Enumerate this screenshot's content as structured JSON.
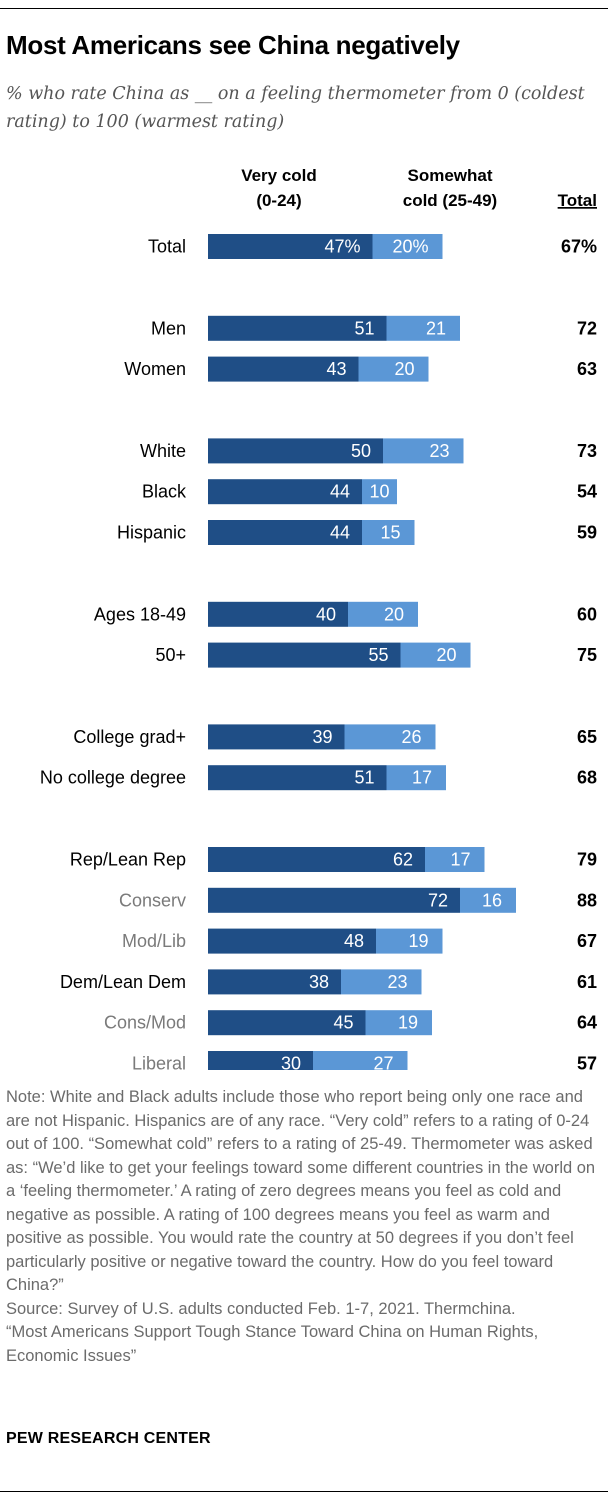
{
  "header": {
    "title": "Most Americans see China negatively",
    "subtitle": "% who rate China as __ on a feeling thermometer from 0 (coldest rating) to 100 (warmest rating)"
  },
  "chart_data": {
    "type": "bar",
    "orientation": "horizontal",
    "stacked": true,
    "title": "Most Americans see China negatively",
    "legend": {
      "very_cold": [
        "Very cold",
        "(0-24)"
      ],
      "somewhat_cold": [
        "Somewhat",
        "cold (25-49)"
      ],
      "total": "Total"
    },
    "colors": {
      "very_cold": "#1f4e86",
      "somewhat_cold": "#5b97d6",
      "label_gray": "#7a7a7a"
    },
    "x_range": [
      0,
      100
    ],
    "rows": [
      {
        "label": "Total",
        "very_cold": 47,
        "somewhat_cold": 20,
        "total": 67,
        "very_cold_label": "47%",
        "somewhat_cold_label": "20%",
        "total_label": "67%",
        "group": 0,
        "sub": false
      },
      {
        "label": "Men",
        "very_cold": 51,
        "somewhat_cold": 21,
        "total": 72,
        "very_cold_label": "51",
        "somewhat_cold_label": "21",
        "total_label": "72",
        "group": 1,
        "sub": false
      },
      {
        "label": "Women",
        "very_cold": 43,
        "somewhat_cold": 20,
        "total": 63,
        "very_cold_label": "43",
        "somewhat_cold_label": "20",
        "total_label": "63",
        "group": 1,
        "sub": false
      },
      {
        "label": "White",
        "very_cold": 50,
        "somewhat_cold": 23,
        "total": 73,
        "very_cold_label": "50",
        "somewhat_cold_label": "23",
        "total_label": "73",
        "group": 2,
        "sub": false
      },
      {
        "label": "Black",
        "very_cold": 44,
        "somewhat_cold": 10,
        "total": 54,
        "very_cold_label": "44",
        "somewhat_cold_label": "10",
        "total_label": "54",
        "group": 2,
        "sub": false
      },
      {
        "label": "Hispanic",
        "very_cold": 44,
        "somewhat_cold": 15,
        "total": 59,
        "very_cold_label": "44",
        "somewhat_cold_label": "15",
        "total_label": "59",
        "group": 2,
        "sub": false
      },
      {
        "label": "Ages 18-49",
        "very_cold": 40,
        "somewhat_cold": 20,
        "total": 60,
        "very_cold_label": "40",
        "somewhat_cold_label": "20",
        "total_label": "60",
        "group": 3,
        "sub": false
      },
      {
        "label": "50+",
        "very_cold": 55,
        "somewhat_cold": 20,
        "total": 75,
        "very_cold_label": "55",
        "somewhat_cold_label": "20",
        "total_label": "75",
        "group": 3,
        "sub": false
      },
      {
        "label": "College grad+",
        "very_cold": 39,
        "somewhat_cold": 26,
        "total": 65,
        "very_cold_label": "39",
        "somewhat_cold_label": "26",
        "total_label": "65",
        "group": 4,
        "sub": false
      },
      {
        "label": "No college degree",
        "very_cold": 51,
        "somewhat_cold": 17,
        "total": 68,
        "very_cold_label": "51",
        "somewhat_cold_label": "17",
        "total_label": "68",
        "group": 4,
        "sub": false
      },
      {
        "label": "Rep/Lean Rep",
        "very_cold": 62,
        "somewhat_cold": 17,
        "total": 79,
        "very_cold_label": "62",
        "somewhat_cold_label": "17",
        "total_label": "79",
        "group": 5,
        "sub": false
      },
      {
        "label": "Conserv",
        "very_cold": 72,
        "somewhat_cold": 16,
        "total": 88,
        "very_cold_label": "72",
        "somewhat_cold_label": "16",
        "total_label": "88",
        "group": 5,
        "sub": true
      },
      {
        "label": "Mod/Lib",
        "very_cold": 48,
        "somewhat_cold": 19,
        "total": 67,
        "very_cold_label": "48",
        "somewhat_cold_label": "19",
        "total_label": "67",
        "group": 5,
        "sub": true
      },
      {
        "label": "Dem/Lean Dem",
        "very_cold": 38,
        "somewhat_cold": 23,
        "total": 61,
        "very_cold_label": "38",
        "somewhat_cold_label": "23",
        "total_label": "61",
        "group": 5,
        "sub": false
      },
      {
        "label": "Cons/Mod",
        "very_cold": 45,
        "somewhat_cold": 19,
        "total": 64,
        "very_cold_label": "45",
        "somewhat_cold_label": "19",
        "total_label": "64",
        "group": 5,
        "sub": true
      },
      {
        "label": "Liberal",
        "very_cold": 30,
        "somewhat_cold": 27,
        "total": 57,
        "very_cold_label": "30",
        "somewhat_cold_label": "27",
        "total_label": "57",
        "group": 5,
        "sub": true
      }
    ]
  },
  "footer": {
    "note": "Note: White and Black adults include those who report being only one race and are not Hispanic. Hispanics are of any race. “Very cold” refers to a rating of 0-24 out of 100. “Somewhat cold” refers to a rating of 25-49. Thermometer was asked as: “We’d like to get your feelings toward some different countries in the world on a ‘feeling thermometer.’ A rating of zero degrees means you feel as cold and negative as possible. A rating of 100 degrees means you feel as warm and positive as possible. You would rate the country at 50 degrees if you don’t feel particularly positive or negative toward the country. How do you feel toward China?”",
    "source": "Source: Survey of U.S. adults conducted Feb. 1-7, 2021. Thermchina.",
    "report": "“Most Americans Support Tough Stance Toward China on Human Rights, Economic Issues”",
    "brand": "PEW RESEARCH CENTER"
  }
}
